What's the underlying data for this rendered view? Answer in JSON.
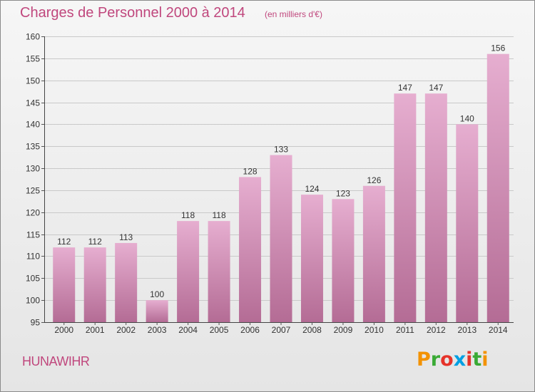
{
  "chart_data": {
    "type": "bar",
    "title": "Charges de Personnel 2000 à 2014",
    "subtitle": "(en milliers d'€)",
    "categories": [
      "2000",
      "2001",
      "2002",
      "2003",
      "2004",
      "2005",
      "2006",
      "2007",
      "2008",
      "2009",
      "2010",
      "2011",
      "2012",
      "2013",
      "2014"
    ],
    "values": [
      112,
      112,
      113,
      100,
      118,
      118,
      128,
      133,
      124,
      123,
      126,
      147,
      147,
      140,
      156
    ],
    "ylim": [
      95,
      160
    ],
    "yticks": [
      95,
      100,
      105,
      110,
      115,
      120,
      125,
      130,
      135,
      140,
      145,
      150,
      155,
      160
    ],
    "grid": true,
    "data_labels": true,
    "colors": {
      "bar_light": "#e3a8ca",
      "bar_dark": "#b96e98",
      "text": "#c0477d"
    }
  },
  "footer": {
    "commune": "HUNAWIHR",
    "brand": "Proxiti"
  },
  "brand_colors": [
    "#f39200",
    "#3aaa35",
    "#e6332a",
    "#009fe3",
    "#e6332a",
    "#3aaa35",
    "#f39200"
  ]
}
